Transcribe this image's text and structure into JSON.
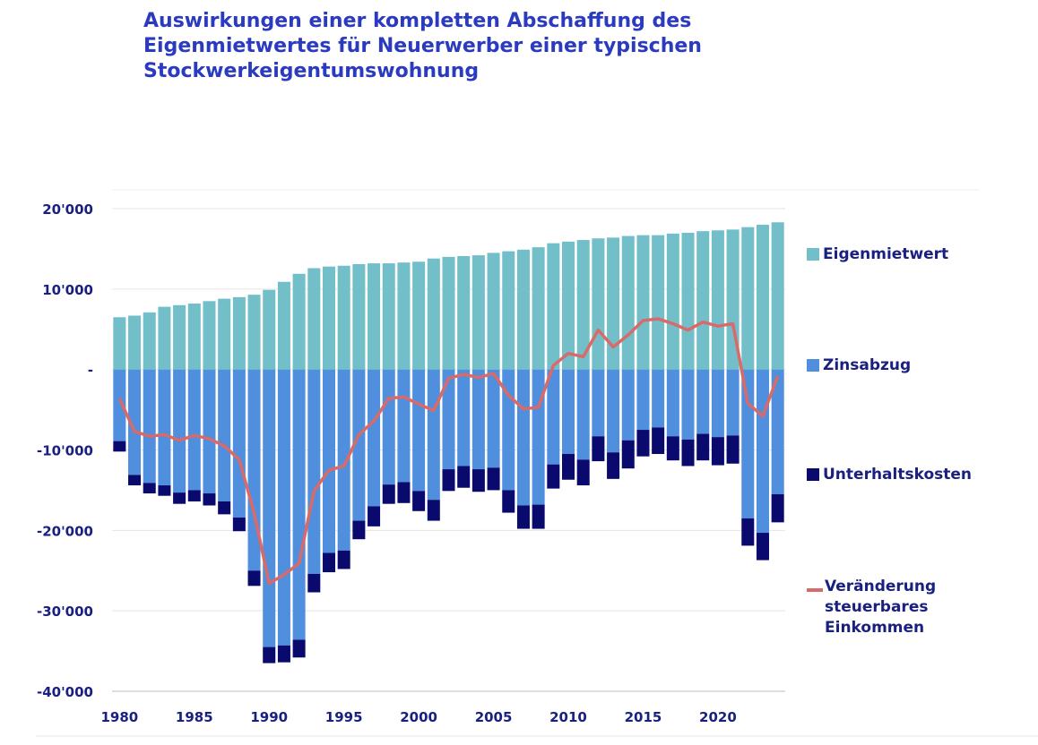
{
  "title_lines": [
    "Auswirkungen einer kompletten Abschaffung des",
    "Eigenmietwertes für Neuerwerber einer typischen",
    "Stockwerkeigentumswohnung"
  ],
  "chart_data": {
    "type": "bar",
    "stacked": true,
    "x": [
      1980,
      1981,
      1982,
      1983,
      1984,
      1985,
      1986,
      1987,
      1988,
      1989,
      1990,
      1991,
      1992,
      1993,
      1994,
      1995,
      1996,
      1997,
      1998,
      1999,
      2000,
      2001,
      2002,
      2003,
      2004,
      2005,
      2006,
      2007,
      2008,
      2009,
      2010,
      2011,
      2012,
      2013,
      2014,
      2015,
      2016,
      2017,
      2018,
      2019,
      2020,
      2021,
      2022,
      2023,
      2024
    ],
    "xticks": [
      1980,
      1985,
      1990,
      1995,
      2000,
      2005,
      2010,
      2015,
      2020
    ],
    "ylim": [
      -40000,
      20000
    ],
    "yticks": [
      20000,
      10000,
      0,
      -10000,
      -20000,
      -30000,
      -40000
    ],
    "ytick_labels": [
      "20'000",
      "10'000",
      "-",
      "-10'000",
      "-20'000",
      "-30'000",
      "-40'000"
    ],
    "grid": true,
    "legend_position": "right",
    "series": [
      {
        "name": "Eigenmietwert",
        "kind": "bar",
        "color": "#72bfca",
        "values": [
          6500,
          6700,
          7100,
          7800,
          8000,
          8200,
          8500,
          8800,
          9000,
          9300,
          9900,
          10900,
          11900,
          12600,
          12800,
          12900,
          13100,
          13200,
          13200,
          13300,
          13400,
          13800,
          14000,
          14100,
          14200,
          14500,
          14700,
          14900,
          15200,
          15700,
          15900,
          16100,
          16300,
          16400,
          16600,
          16700,
          16700,
          16900,
          17000,
          17200,
          17300,
          17400,
          17700,
          18000,
          18300
        ]
      },
      {
        "name": "Zinsabzug",
        "kind": "bar",
        "color": "#4f8fdd",
        "values": [
          -8900,
          -13100,
          -14100,
          -14400,
          -15300,
          -15000,
          -15400,
          -16400,
          -18400,
          -25000,
          -34500,
          -34300,
          -33600,
          -25400,
          -22800,
          -22500,
          -18800,
          -17000,
          -14300,
          -14000,
          -15100,
          -16200,
          -12400,
          -12000,
          -12400,
          -12200,
          -15000,
          -16900,
          -16800,
          -11800,
          -10500,
          -11200,
          -8300,
          -10300,
          -8800,
          -7500,
          -7200,
          -8300,
          -8700,
          -8000,
          -8400,
          -8200,
          -18500,
          -20300,
          -15500
        ]
      },
      {
        "name": "Unterhaltskosten",
        "kind": "bar",
        "color": "#0a0a6e",
        "values": [
          -1300,
          -1300,
          -1300,
          -1300,
          -1400,
          -1400,
          -1500,
          -1600,
          -1700,
          -1900,
          -2000,
          -2100,
          -2200,
          -2300,
          -2400,
          -2300,
          -2300,
          -2500,
          -2400,
          -2600,
          -2500,
          -2600,
          -2700,
          -2700,
          -2800,
          -2800,
          -2800,
          -2900,
          -3000,
          -3000,
          -3200,
          -3200,
          -3100,
          -3300,
          -3500,
          -3300,
          -3300,
          -3000,
          -3300,
          -3300,
          -3500,
          -3500,
          -3400,
          -3400,
          -3500
        ]
      },
      {
        "name": "Veränderung steuerbares Einkommen",
        "kind": "line",
        "color": "#d86a6a",
        "values": [
          -3600,
          -7700,
          -8300,
          -8100,
          -8800,
          -8200,
          -8600,
          -9500,
          -11200,
          -17800,
          -26600,
          -25500,
          -24100,
          -15100,
          -12500,
          -12000,
          -8100,
          -6400,
          -3600,
          -3400,
          -4300,
          -5100,
          -1100,
          -600,
          -1000,
          -500,
          -3200,
          -4900,
          -4700,
          500,
          2000,
          1600,
          4900,
          2800,
          4300,
          6100,
          6300,
          5700,
          4900,
          5900,
          5400,
          5700,
          -4200,
          -5800,
          -800
        ]
      }
    ]
  },
  "legend": {
    "eigenmietwert": "Eigenmietwert",
    "zinsabzug": "Zinsabzug",
    "unterhalt": "Unterhaltskosten",
    "veraenderung_lines": [
      "Veränderung",
      "steuerbares",
      "Einkommen"
    ]
  },
  "colors": {
    "title": "#2b3bbf",
    "axis_text": "#1a2080",
    "grid": "#e4e4e4",
    "eigenmietwert": "#72bfca",
    "zinsabzug": "#4f8fdd",
    "unterhalt": "#0a0a6e",
    "line": "#d86a6a"
  }
}
